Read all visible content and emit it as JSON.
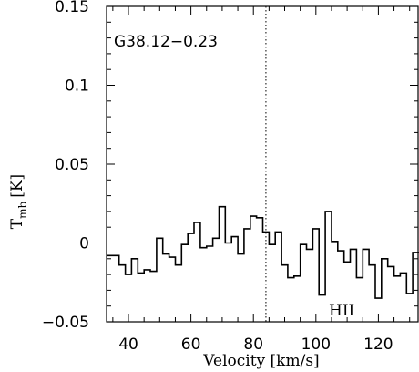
{
  "chart_data": {
    "type": "line",
    "style": "step",
    "title": "",
    "xlabel": "Velocity [km/s]",
    "ylabel_main": "T",
    "ylabel_sub": "mb",
    "ylabel_unit": "[K]",
    "xlim": [
      33,
      133
    ],
    "ylim": [
      -0.05,
      0.15
    ],
    "x_ticks": [
      40,
      60,
      80,
      100,
      120
    ],
    "x_tick_labels": [
      "40",
      "60",
      "80",
      "100",
      "120"
    ],
    "y_ticks": [
      -0.05,
      0,
      0.05,
      0.1,
      0.15
    ],
    "y_tick_labels": [
      "−0.05",
      "0",
      "0.05",
      "0.1",
      "0.15"
    ],
    "grid": false,
    "annotations": {
      "source_name": "G38.12−0.23",
      "region_label": "HII",
      "vline_x": 84
    },
    "x": [
      33,
      35,
      37,
      39,
      41,
      43,
      45,
      47,
      49,
      51,
      53,
      55,
      57,
      59,
      61,
      63,
      65,
      67,
      69,
      71,
      73,
      75,
      77,
      79,
      81,
      83,
      85,
      87,
      89,
      91,
      93,
      95,
      97,
      99,
      101,
      103,
      105,
      107,
      109,
      111,
      113,
      115,
      117,
      119,
      121,
      123,
      125,
      127,
      129,
      131
    ],
    "y": [
      -0.008,
      -0.008,
      -0.014,
      -0.02,
      -0.01,
      -0.019,
      -0.017,
      -0.018,
      0.003,
      -0.007,
      -0.009,
      -0.014,
      -0.001,
      0.006,
      0.013,
      -0.003,
      -0.002,
      0.003,
      0.023,
      0.0,
      0.004,
      -0.007,
      0.009,
      0.017,
      0.016,
      0.007,
      -0.001,
      0.007,
      -0.014,
      -0.022,
      -0.021,
      -0.001,
      -0.004,
      0.009,
      -0.033,
      0.02,
      0.001,
      -0.005,
      -0.012,
      -0.004,
      -0.022,
      -0.004,
      -0.014,
      -0.035,
      -0.01,
      -0.015,
      -0.021,
      -0.019,
      -0.032,
      -0.006
    ]
  }
}
